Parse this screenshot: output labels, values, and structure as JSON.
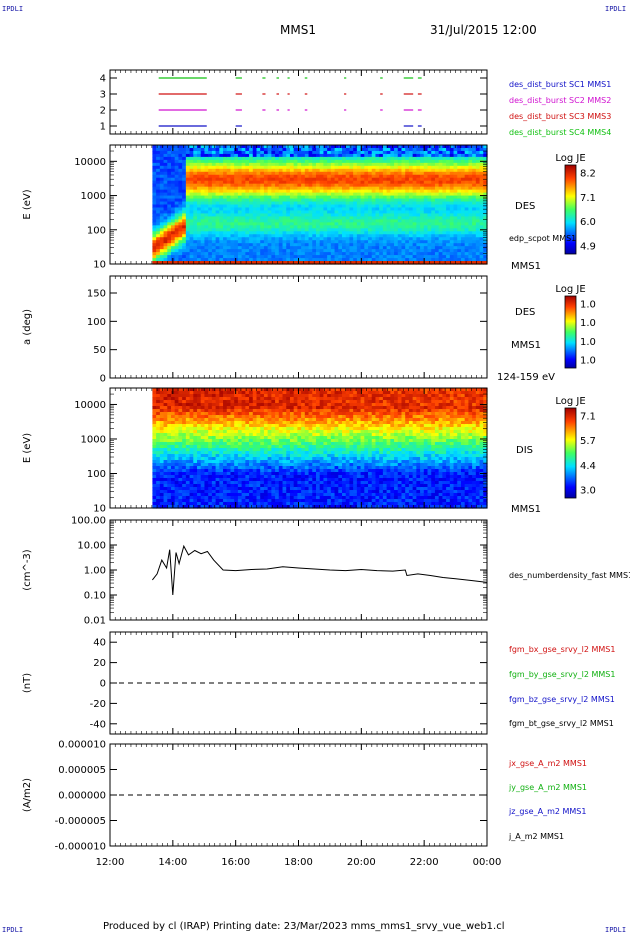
{
  "header": {
    "corner_tl": "IPDLI",
    "corner_tr": "IPDLI",
    "corner_bl": "IPDLI",
    "corner_br": "IPDLI",
    "spacecraft": "MMS1",
    "date_time": "31/Jul/2015 12:00"
  },
  "footer": {
    "text": "Produced by cl (IRAP)   Printing date: 23/Mar/2023   mms_mms1_srvy_vue_web1.cl"
  },
  "colors": {
    "sc1": "#1010c8",
    "sc2": "#d010d0",
    "sc3": "#d01010",
    "sc4": "#10c010",
    "bx": "#d01010",
    "by": "#10b010",
    "bz": "#1010c8",
    "bt": "#000000"
  },
  "chart_data": [
    {
      "id": "burst",
      "type": "timeline",
      "ylabel": "",
      "ylim": [
        0.5,
        4.5
      ],
      "yticks": [
        "1",
        "2",
        "3",
        "4"
      ],
      "legend": [
        "des_dist_burst SC1 MMS1",
        "des_dist_burst SC2 MMS2",
        "des_dist_burst SC3 MMS3",
        "des_dist_burst SC4 MMS4"
      ],
      "series": [
        {
          "level": 4,
          "color": "#10c010",
          "intervals": [
            [
              13.55,
              15.08
            ],
            [
              16.0,
              16.2
            ],
            [
              16.85,
              16.95
            ],
            [
              17.3,
              17.38
            ],
            [
              17.65,
              17.72
            ],
            [
              18.2,
              18.28
            ],
            [
              19.45,
              19.52
            ],
            [
              20.6,
              20.68
            ],
            [
              21.35,
              21.65
            ],
            [
              21.8,
              21.92
            ]
          ]
        },
        {
          "level": 3,
          "color": "#d01010",
          "intervals": [
            [
              13.55,
              15.08
            ],
            [
              16.0,
              16.2
            ],
            [
              16.85,
              16.95
            ],
            [
              17.3,
              17.38
            ],
            [
              17.65,
              17.72
            ],
            [
              18.2,
              18.28
            ],
            [
              19.45,
              19.52
            ],
            [
              20.6,
              20.68
            ],
            [
              21.35,
              21.65
            ],
            [
              21.8,
              21.92
            ]
          ]
        },
        {
          "level": 2,
          "color": "#d010d0",
          "intervals": [
            [
              13.55,
              15.08
            ],
            [
              16.0,
              16.2
            ],
            [
              16.85,
              16.95
            ],
            [
              17.3,
              17.38
            ],
            [
              17.65,
              17.72
            ],
            [
              18.2,
              18.28
            ],
            [
              19.45,
              19.52
            ],
            [
              20.6,
              20.68
            ],
            [
              21.35,
              21.65
            ],
            [
              21.8,
              21.92
            ]
          ]
        },
        {
          "level": 1,
          "color": "#1010c8",
          "intervals": [
            [
              13.55,
              15.08
            ],
            [
              16.0,
              16.2
            ],
            [
              21.35,
              21.65
            ],
            [
              21.8,
              21.92
            ]
          ]
        }
      ]
    },
    {
      "id": "des_spec",
      "type": "heatmap",
      "ylabel": "E (eV)",
      "ylim": [
        10,
        30000
      ],
      "yscale": "log",
      "yticks": [
        "10",
        "100",
        "1000",
        "10000"
      ],
      "data_start_hour": 13.35,
      "right_labels": [
        "DES",
        "edp_scpot MMS1",
        "MMS1"
      ],
      "colorbar": {
        "title": "Log JE",
        "ticks": [
          "8.2",
          "7.1",
          "6.0",
          "4.9"
        ]
      }
    },
    {
      "id": "pitch",
      "type": "heatmap",
      "ylabel": "a (deg)",
      "ylim": [
        0,
        180
      ],
      "yticks": [
        "0",
        "50",
        "100",
        "150"
      ],
      "right_labels": [
        "DES",
        "MMS1",
        "124-159 eV"
      ],
      "colorbar": {
        "title": "Log JE",
        "ticks": [
          "1.0",
          "1.0",
          "1.0",
          "1.0"
        ]
      }
    },
    {
      "id": "dis_spec",
      "type": "heatmap",
      "ylabel": "E (eV)",
      "ylim": [
        10,
        30000
      ],
      "yscale": "log",
      "yticks": [
        "10",
        "100",
        "1000",
        "10000"
      ],
      "data_start_hour": 13.35,
      "right_labels": [
        "DIS",
        "MMS1"
      ],
      "colorbar": {
        "title": "Log JE",
        "ticks": [
          "7.1",
          "5.7",
          "4.4",
          "3.0"
        ]
      }
    },
    {
      "id": "density",
      "type": "line",
      "ylabel": "(cm^-3)",
      "yscale": "log",
      "ylim": [
        0.01,
        100
      ],
      "yticks": [
        "0.01",
        "0.10",
        "1.00",
        "10.00",
        "100.00"
      ],
      "series": [
        {
          "name": "des_numberdensity_fast MMS1",
          "color": "#000000",
          "x": [
            13.35,
            13.5,
            13.65,
            13.8,
            13.9,
            14.0,
            14.1,
            14.2,
            14.35,
            14.5,
            14.7,
            14.9,
            15.1,
            15.3,
            15.6,
            16.0,
            16.5,
            17.0,
            17.5,
            18.0,
            18.5,
            19.0,
            19.5,
            20.0,
            20.5,
            21.0,
            21.4,
            21.45,
            21.8,
            22.2,
            22.6,
            23.0,
            23.5,
            24.0
          ],
          "y": [
            0.4,
            0.7,
            2.5,
            1.2,
            6.5,
            0.1,
            5.0,
            1.8,
            9.0,
            4.0,
            6.0,
            4.5,
            5.5,
            2.5,
            1.0,
            0.95,
            1.05,
            1.1,
            1.35,
            1.2,
            1.1,
            1.0,
            0.95,
            1.05,
            0.95,
            0.9,
            1.0,
            0.6,
            0.7,
            0.6,
            0.5,
            0.45,
            0.38,
            0.32
          ]
        }
      ]
    },
    {
      "id": "bfield",
      "type": "line",
      "ylabel": "(nT)",
      "ylim": [
        -50,
        50
      ],
      "yticks": [
        "-40",
        "-20",
        "0",
        "20",
        "40"
      ],
      "zero_line": true,
      "series": [
        {
          "name": "fgm_bx_gse_srvy_l2 MMS1",
          "color": "#d01010",
          "x": [],
          "y": []
        },
        {
          "name": "fgm_by_gse_srvy_l2 MMS1",
          "color": "#10b010",
          "x": [],
          "y": []
        },
        {
          "name": "fgm_bz_gse_srvy_l2 MMS1",
          "color": "#1010c8",
          "x": [],
          "y": []
        },
        {
          "name": "fgm_bt_gse_srvy_l2 MMS1",
          "color": "#000000",
          "x": [],
          "y": []
        }
      ]
    },
    {
      "id": "current",
      "type": "line",
      "ylabel": "(A/m2)",
      "ylim": [
        -1e-05,
        1e-05
      ],
      "yticks": [
        "-0.000010",
        "-0.000005",
        "0.000000",
        "0.000005",
        "0.000010"
      ],
      "zero_line": true,
      "series": [
        {
          "name": "jx_gse_A_m2 MMS1",
          "color": "#d01010",
          "x": [],
          "y": []
        },
        {
          "name": "jy_gse_A_m2 MMS1",
          "color": "#10b010",
          "x": [],
          "y": []
        },
        {
          "name": "jz_gse_A_m2 MMS1",
          "color": "#1010c8",
          "x": [],
          "y": []
        },
        {
          "name": "j_A_m2 MMS1",
          "color": "#000000",
          "x": [],
          "y": []
        }
      ]
    }
  ],
  "time_axis": {
    "xlim": [
      12,
      24
    ],
    "ticks": [
      {
        "h": 12,
        "label": "12:00"
      },
      {
        "h": 14,
        "label": "14:00"
      },
      {
        "h": 16,
        "label": "16:00"
      },
      {
        "h": 18,
        "label": "18:00"
      },
      {
        "h": 20,
        "label": "20:00"
      },
      {
        "h": 22,
        "label": "22:00"
      },
      {
        "h": 24,
        "label": "00:00"
      }
    ]
  }
}
